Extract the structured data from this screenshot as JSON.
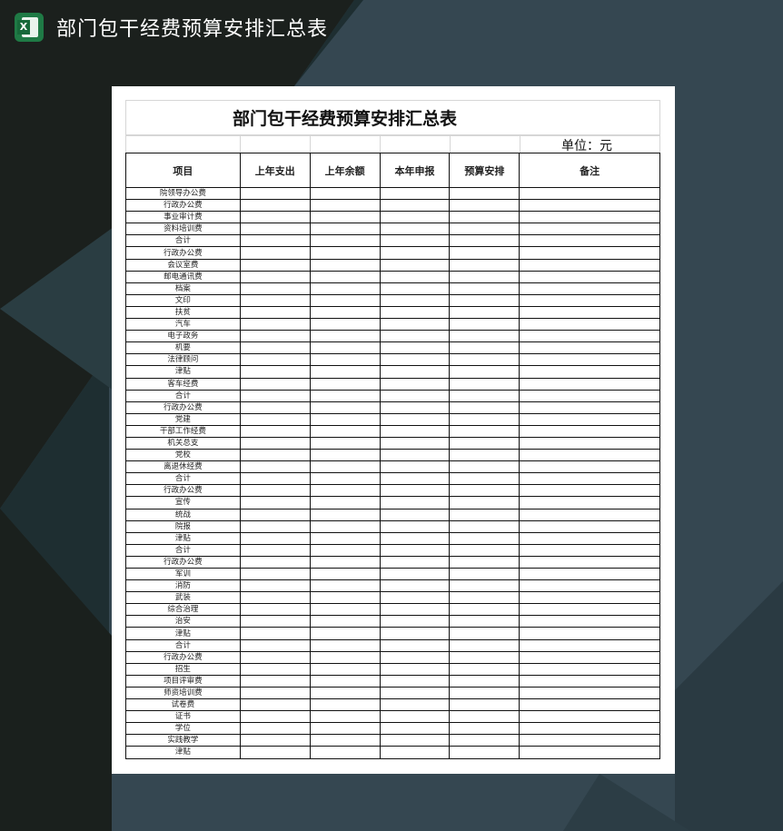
{
  "app": {
    "title": "部门包干经费预算安排汇总表",
    "icon": "excel-icon",
    "icon_letter": "X"
  },
  "sheet": {
    "title": "部门包干经费预算安排汇总表",
    "unit": "单位：元",
    "columns": [
      "项目",
      "上年支出",
      "上年余额",
      "本年申报",
      "预算安排",
      "备注"
    ],
    "rows": [
      "院领导办公费",
      "行政办公费",
      "事业审计费",
      "资料培训费",
      "合计",
      "行政办公费",
      "会议室费",
      "邮电通讯费",
      "档案",
      "文印",
      "扶贫",
      "汽车",
      "电子政务",
      "机要",
      "法律顾问",
      "津贴",
      "客车经费",
      "合计",
      "行政办公费",
      "党建",
      "干部工作经费",
      "机关总支",
      "党校",
      "离退休经费",
      "合计",
      "行政办公费",
      "宣传",
      "统战",
      "院报",
      "津贴",
      "合计",
      "行政办公费",
      "军训",
      "消防",
      "武装",
      "综合治理",
      "治安",
      "津贴",
      "合计",
      "行政办公费",
      "招生",
      "项目评审费",
      "师资培训费",
      "试卷费",
      "证书",
      "学位",
      "实践教学",
      "津贴"
    ]
  },
  "colors": {
    "background": "#354751",
    "dark": "#1a1f1c",
    "excel_green": "#1f7a45"
  }
}
